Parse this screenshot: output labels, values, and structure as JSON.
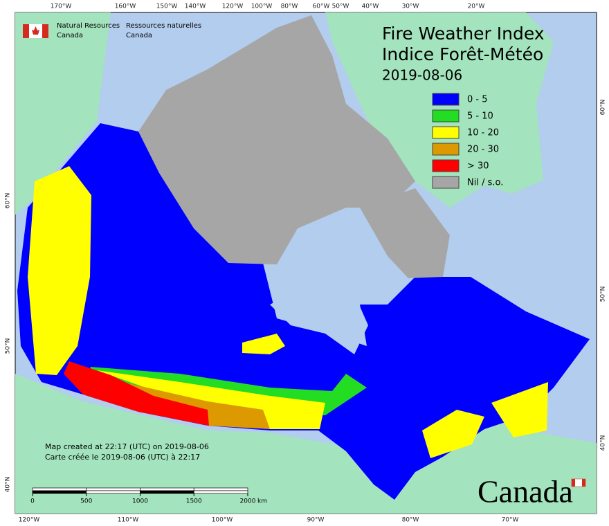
{
  "header": {
    "agency_en": [
      "Natural Resources",
      "Canada"
    ],
    "agency_fr": [
      "Ressources naturelles",
      "Canada"
    ]
  },
  "title": [
    "Fire Weather Index",
    "Indice Forêt-Météo"
  ],
  "date": "2019-08-06",
  "legend": [
    {
      "label": "0 - 5",
      "color": "#0000ff"
    },
    {
      "label": "5 - 10",
      "color": "#22dd22"
    },
    {
      "label": "10 - 20",
      "color": "#ffff00"
    },
    {
      "label": "20 - 30",
      "color": "#dd9900"
    },
    {
      "label": "> 30",
      "color": "#ff0000"
    },
    {
      "label": "Nil / s.o.",
      "color": "#a6a6a6"
    }
  ],
  "top_longitudes": [
    "170°W",
    "160°W",
    "150°W",
    "140°W",
    "120°W",
    "100°W",
    "80°W",
    "60°W",
    "50°W",
    "40°W",
    "30°W",
    "20°W"
  ],
  "bottom_longitudes": [
    "120°W",
    "110°W",
    "100°W",
    "90°W",
    "80°W",
    "70°W"
  ],
  "left_latitudes": [
    "60°N",
    "50°N",
    "40°N"
  ],
  "right_latitudes": [
    "60°N",
    "50°N",
    "40°N"
  ],
  "credit": [
    "Map created at 22:17 (UTC) on 2019-08-06",
    "Carte créée le 2019-08-06 (UTC) à 22:17"
  ],
  "scale_bar": {
    "labels": [
      0,
      500,
      1000,
      1500,
      2000
    ],
    "unit": "km"
  },
  "wordmark": "Canada"
}
